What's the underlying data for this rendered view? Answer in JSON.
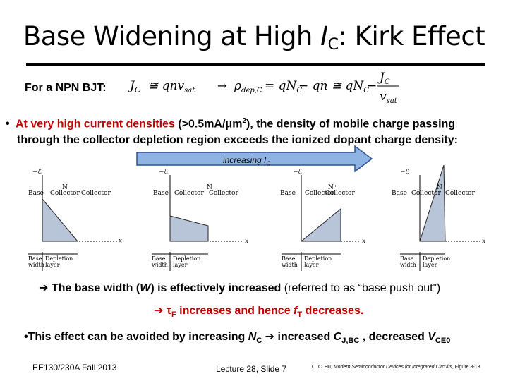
{
  "title": {
    "pre": "Base Widening at High ",
    "I": "I",
    "sub": "C",
    "post": ": Kirk Effect"
  },
  "npn_label": "For a NPN BJT:",
  "equation": {
    "lhs": "J",
    "lhs_sub": "C",
    "approx": "≅ qnv",
    "vsat_sub": "sat",
    "rho": "ρ",
    "rho_sub": "dep,C",
    "middle": " = qN",
    "minus": " − qn ≅ qN",
    "fraction_num": "J",
    "fraction_den": "v",
    "minus2": " −"
  },
  "bullet": {
    "red_text": "At very high current densities",
    "paren": " (>0.5mA/μm",
    "sup": "2",
    "paren_end": "), the density of mobile charge passing",
    "line2": "through the collector depletion region exceeds the ionized dopant charge density:"
  },
  "arrow_label": {
    "text": "increasing I",
    "sub": "C"
  },
  "diagrams": [
    {
      "e_label": "−ℰ",
      "n_label": "N",
      "base": "Base",
      "collector": "Collector",
      "width": "Base width",
      "depl": "Depletion layer",
      "x": "x"
    },
    {
      "e_label": "−ℰ",
      "n_label": "N",
      "base": "Base",
      "collector": "Collector",
      "width": "Base width",
      "depl": "Depletion layer",
      "x": "x"
    },
    {
      "e_label": "−ℰ",
      "n_label": "N⁺",
      "base": "Base",
      "collector": "Collector",
      "width": "Base width",
      "depl": "Depletion layer",
      "x": "x"
    },
    {
      "e_label": "−ℰ",
      "n_label": "N⁻",
      "base": "Base",
      "collector": "Collector",
      "width": "Base width",
      "depl": "Depletion layer",
      "x": "x"
    }
  ],
  "conclusion1": {
    "arrow": "➔",
    "a": " The base width (",
    "W": "W",
    "b": ") is effectively increased ",
    "c": "(referred to as “base push out”)"
  },
  "conclusion2": {
    "arrow": "➔ ",
    "tau": "τ",
    "tau_sub": "F",
    "a": " increases and hence ",
    "f": "f",
    "f_sub": "T",
    "b": " decreases."
  },
  "avoid": {
    "a": "•This effect can be avoided by increasing ",
    "N": "N",
    "N_sub": "C",
    "b": " ➔ increased ",
    "C": "C",
    "C_sub": "J,BC",
    "c": " , decreased ",
    "V": "V",
    "V_sub": "CE0"
  },
  "footer": {
    "course": "EE130/230A Fall 2013",
    "slide": "Lecture 28, Slide 7",
    "ref_a": "C. C. Hu, ",
    "ref_b": "Modern Semiconductor Devices for Integrated Circuits",
    "ref_c": ", Figure 8-18"
  }
}
